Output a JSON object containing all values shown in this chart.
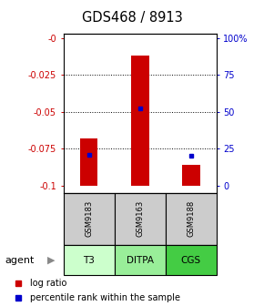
{
  "title": "GDS468 / 8913",
  "samples": [
    "GSM9183",
    "GSM9163",
    "GSM9188"
  ],
  "agents": [
    "T3",
    "DITPA",
    "CGS"
  ],
  "bar_tops": [
    -0.068,
    -0.012,
    -0.086
  ],
  "bar_bottoms": [
    -0.1,
    -0.1,
    -0.1
  ],
  "bar_color": "#cc0000",
  "percentile_values": [
    -0.079,
    -0.048,
    -0.08
  ],
  "percentile_color": "#0000cc",
  "ylim_left": [
    -0.105,
    0.003
  ],
  "yticks_left": [
    0,
    -0.025,
    -0.05,
    -0.075,
    -0.1
  ],
  "ytick_labels_left": [
    "-0",
    "-0.025",
    "-0.05",
    "-0.075",
    "-0.1"
  ],
  "yticks_right_pct": [
    100,
    75,
    50,
    25,
    0
  ],
  "grid_values": [
    -0.025,
    -0.05,
    -0.075
  ],
  "agent_colors": [
    "#ccffcc",
    "#99ee99",
    "#44cc44"
  ],
  "sample_bg_color": "#cccccc",
  "bar_width": 0.35,
  "legend_log_label": "log ratio",
  "legend_pct_label": "percentile rank within the sample",
  "agent_label": "agent"
}
